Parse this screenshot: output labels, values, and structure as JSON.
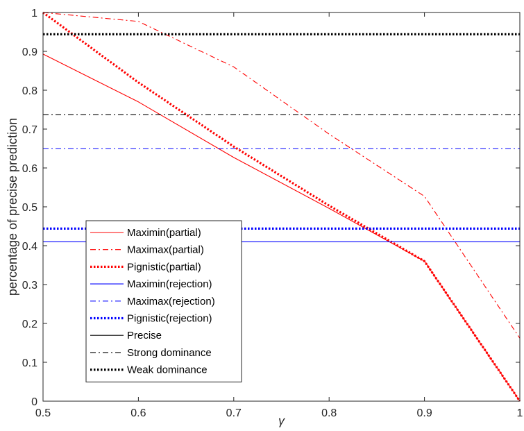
{
  "chart_data": {
    "type": "line",
    "title": "",
    "xlabel": "γ",
    "ylabel": "percentage of precise prediction",
    "xlim": [
      0.5,
      1
    ],
    "ylim": [
      0,
      1
    ],
    "x_ticks": [
      0.5,
      0.6,
      0.7,
      0.8,
      0.9,
      1
    ],
    "x_tick_labels": [
      "0.5",
      "0.6",
      "0.7",
      "0.8",
      "0.9",
      "1"
    ],
    "y_ticks": [
      0,
      0.1,
      0.2,
      0.3,
      0.4,
      0.5,
      0.6,
      0.7,
      0.8,
      0.9,
      1
    ],
    "y_tick_labels": [
      "0",
      "0.1",
      "0.2",
      "0.3",
      "0.4",
      "0.5",
      "0.6",
      "0.7",
      "0.8",
      "0.9",
      "1"
    ],
    "grid": false,
    "legend_position": "bottom-left",
    "x": [
      0.5,
      0.6,
      0.7,
      0.8,
      0.9,
      1.0
    ],
    "series": [
      {
        "name": "Maximin(partial)",
        "color": "#ff0000",
        "style": "solid",
        "weight": "thin",
        "values": [
          0.893,
          0.77,
          0.627,
          0.496,
          0.36,
          0.0
        ]
      },
      {
        "name": "Maximax(partial)",
        "color": "#ff0000",
        "style": "dashdot",
        "weight": "thin",
        "values": [
          1.0,
          0.977,
          0.86,
          0.687,
          0.527,
          0.162
        ]
      },
      {
        "name": "Pignistic(partial)",
        "color": "#ff0000",
        "style": "dotted",
        "weight": "thick",
        "values": [
          1.0,
          0.82,
          0.655,
          0.503,
          0.36,
          0.0
        ]
      },
      {
        "name": "Maximin(rejection)",
        "color": "#0000ff",
        "style": "solid",
        "weight": "thin",
        "values": [
          0.41,
          0.41,
          0.41,
          0.41,
          0.41,
          0.41
        ]
      },
      {
        "name": "Maximax(rejection)",
        "color": "#0000ff",
        "style": "dashdot",
        "weight": "thin",
        "values": [
          0.65,
          0.65,
          0.65,
          0.65,
          0.65,
          0.65
        ]
      },
      {
        "name": "Pignistic(rejection)",
        "color": "#0000ff",
        "style": "dotted",
        "weight": "thick",
        "values": [
          0.444,
          0.444,
          0.444,
          0.444,
          0.444,
          0.444
        ]
      },
      {
        "name": "Precise",
        "color": "#000000",
        "style": "solid",
        "weight": "thin",
        "values": [
          1.0,
          1.0,
          1.0,
          1.0,
          1.0,
          1.0
        ]
      },
      {
        "name": "Strong dominance",
        "color": "#000000",
        "style": "dashdot",
        "weight": "thin",
        "values": [
          0.737,
          0.737,
          0.737,
          0.737,
          0.737,
          0.737
        ]
      },
      {
        "name": "Weak dominance",
        "color": "#000000",
        "style": "dotted",
        "weight": "thick",
        "values": [
          0.944,
          0.944,
          0.944,
          0.944,
          0.944,
          0.944
        ]
      }
    ]
  }
}
